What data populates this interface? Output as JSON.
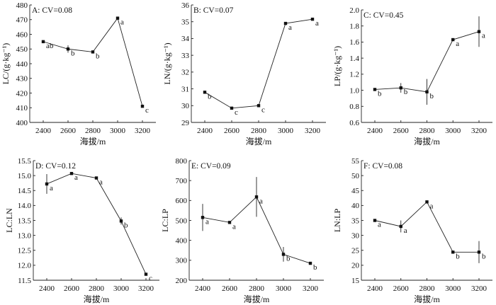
{
  "chart_data": [
    {
      "type": "line",
      "panel": "A",
      "title": "A: CV=0.08",
      "xlabel": "海拔/m",
      "ylabel": "LC/(g·kg⁻¹)",
      "x": [
        2400,
        2600,
        2800,
        3000,
        3200
      ],
      "y": [
        455,
        450,
        448,
        471,
        411
      ],
      "errors": [
        0,
        2.5,
        0,
        1,
        0
      ],
      "labels": [
        "ab",
        "b",
        "b",
        "a",
        "c"
      ],
      "ylim": [
        400,
        480
      ],
      "yticks": [
        "400",
        "410",
        "420",
        "430",
        "440",
        "450",
        "460",
        "470",
        "480"
      ]
    },
    {
      "type": "line",
      "panel": "B",
      "title": "B: CV=0.07",
      "xlabel": "海拔/m",
      "ylabel": "LN/(g·kg⁻¹)",
      "x": [
        2400,
        2600,
        2800,
        3000,
        3200
      ],
      "y": [
        30.8,
        29.85,
        30.0,
        34.9,
        35.15
      ],
      "errors": [
        0,
        0,
        0,
        0,
        0
      ],
      "labels": [
        "b",
        "c",
        "c",
        "a",
        "a"
      ],
      "ylim": [
        29,
        36
      ],
      "yticks": [
        "29",
        "30",
        "31",
        "32",
        "33",
        "34",
        "35",
        "36"
      ]
    },
    {
      "type": "line",
      "panel": "C",
      "title": "C: CV=0.45",
      "xlabel": "海拔/m",
      "ylabel": "LP/(g·kg⁻¹)",
      "x": [
        2400,
        2600,
        2800,
        3000,
        3200
      ],
      "y": [
        1.01,
        1.03,
        0.98,
        1.63,
        1.73
      ],
      "errors": [
        0,
        0.06,
        0.16,
        0,
        0.19
      ],
      "labels": [
        "b",
        "b",
        "b",
        "a",
        "a"
      ],
      "ylim": [
        0.6,
        2.0
      ],
      "yticks": [
        "0.6",
        "0.8",
        "1.0",
        "1.2",
        "1.4",
        "1.6",
        "1.8",
        "2.0"
      ]
    },
    {
      "type": "line",
      "panel": "D",
      "title": "D: CV=0.12",
      "xlabel": "海拔/m",
      "ylabel": "LC:LN",
      "x": [
        2400,
        2600,
        2800,
        3000,
        3200
      ],
      "y": [
        14.72,
        15.07,
        14.92,
        13.48,
        11.7
      ],
      "errors": [
        0.33,
        0,
        0,
        0.12,
        0
      ],
      "labels": [
        "a",
        "a",
        "a",
        "b",
        "c"
      ],
      "ylim": [
        11.5,
        15.5
      ],
      "yticks": [
        "11.5",
        "12.0",
        "12.5",
        "13.0",
        "13.5",
        "14.0",
        "14.5",
        "15.0",
        "15.5"
      ]
    },
    {
      "type": "line",
      "panel": "E",
      "title": "E: CV=0.09",
      "xlabel": "海拔/m",
      "ylabel": "LC:LP",
      "x": [
        2400,
        2600,
        2800,
        3000,
        3200
      ],
      "y": [
        515,
        490,
        618,
        330,
        285
      ],
      "errors": [
        68,
        0,
        100,
        37,
        0
      ],
      "labels": [
        "a",
        "a",
        "a",
        "b",
        "b"
      ],
      "ylim": [
        200,
        800
      ],
      "yticks": [
        "200",
        "300",
        "400",
        "500",
        "600",
        "700",
        "800"
      ]
    },
    {
      "type": "line",
      "panel": "F",
      "title": "F: CV=0.08",
      "xlabel": "海拔/m",
      "ylabel": "LN:LP",
      "x": [
        2400,
        2600,
        2800,
        3000,
        3200
      ],
      "y": [
        35,
        33,
        41.2,
        24.4,
        24.4
      ],
      "errors": [
        0,
        2,
        0,
        0,
        3.7
      ],
      "labels": [
        "a",
        "a",
        "a",
        "b",
        "b"
      ],
      "ylim": [
        15,
        55
      ],
      "yticks": [
        "15",
        "20",
        "25",
        "30",
        "35",
        "40",
        "45",
        "50",
        "55"
      ]
    }
  ]
}
